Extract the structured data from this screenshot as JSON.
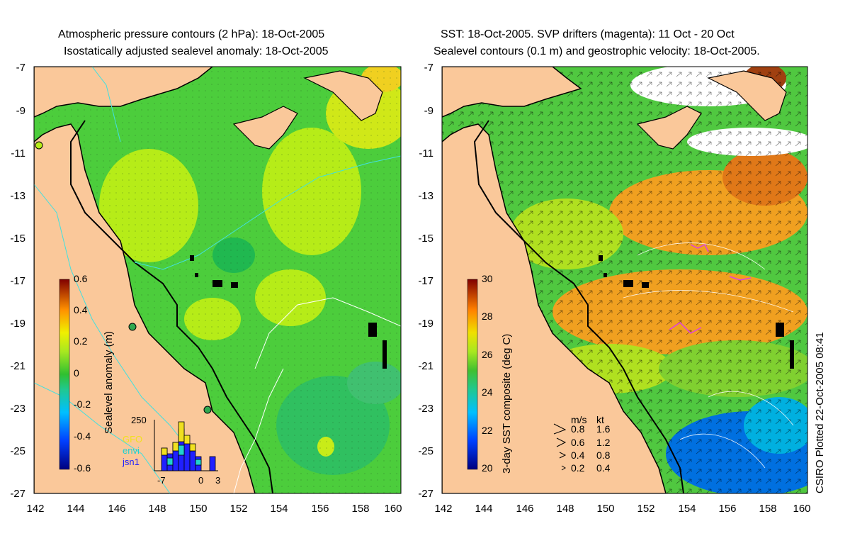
{
  "left_panel": {
    "title_line1": "Atmospheric pressure contours (2 hPa): 18-Oct-2005",
    "title_line2": "Isostatically adjusted sealevel anomaly: 18-Oct-2005",
    "y_ticks": [
      "-7",
      "-9",
      "-11",
      "-13",
      "-15",
      "-17",
      "-19",
      "-21",
      "-23",
      "-25",
      "-27"
    ],
    "x_ticks": [
      "142",
      "144",
      "146",
      "148",
      "150",
      "152",
      "154",
      "156",
      "158",
      "160"
    ],
    "colorbar": {
      "label": "Sealevel anomaly (m)",
      "ticks": [
        "0.6",
        "0.4",
        "0.2",
        "0",
        "-0.2",
        "-0.4",
        "-0.6"
      ],
      "range": [
        -0.6,
        0.6
      ]
    },
    "inset": {
      "ymax_label": "250",
      "x_labels": [
        "-7",
        "0",
        "3"
      ],
      "legend": [
        {
          "label": "GFO",
          "color": "#f0e020"
        },
        {
          "label": "envi",
          "color": "#20d0d0"
        },
        {
          "label": "jsn1",
          "color": "#2020ff"
        }
      ]
    }
  },
  "right_panel": {
    "title_line1": "SST: 18-Oct-2005. SVP drifters (magenta): 11 Oct - 20 Oct",
    "title_line2": "Sealevel contours (0.1 m) and geostrophic velocity: 18-Oct-2005.",
    "y_ticks": [
      "-7",
      "-9",
      "-11",
      "-13",
      "-15",
      "-17",
      "-19",
      "-21",
      "-23",
      "-25",
      "-27"
    ],
    "x_ticks": [
      "142",
      "144",
      "146",
      "148",
      "150",
      "152",
      "154",
      "156",
      "158",
      "160"
    ],
    "colorbar": {
      "label": "3-day SST composite (deg C)",
      "ticks": [
        "30",
        "28",
        "26",
        "24",
        "22",
        "20"
      ],
      "range": [
        20,
        30
      ]
    },
    "velocity_legend": {
      "header_ms": "m/s",
      "header_kt": "kt",
      "rows": [
        {
          "ms": "0.8",
          "kt": "1.6"
        },
        {
          "ms": "0.6",
          "kt": "1.2"
        },
        {
          "ms": "0.4",
          "kt": "0.8"
        },
        {
          "ms": "0.2",
          "kt": "0.4"
        }
      ]
    }
  },
  "credit": "CSIRO Plotted 22-Oct-2005 08:41",
  "colors": {
    "land": "#fac89a",
    "ocean_green": "#4ccd3c",
    "ocean_yellowgreen": "#b6ec18",
    "coast": "#000000",
    "pressure_contour": "#40e0e0",
    "sst_orange": "#f0a020",
    "sst_green": "#50c840"
  }
}
